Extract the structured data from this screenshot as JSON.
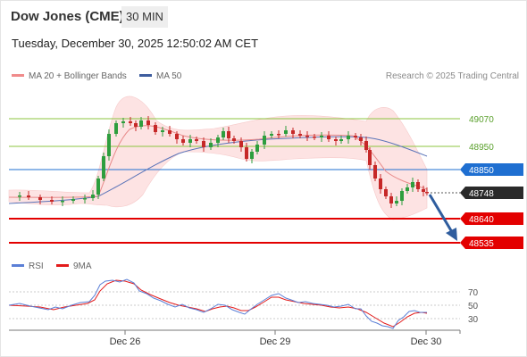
{
  "header": {
    "instrument": "Dow Jones (CME)",
    "timeframe": "30 MIN",
    "datetime": "Tuesday, December 30, 2025 12:50:02 AM CET"
  },
  "legend": {
    "ma20": "MA 20 + Bollinger Bands",
    "ma50": "MA 50",
    "credit": "Research © 2025 Trading Central",
    "rsi": "RSI",
    "ma9": "9MA"
  },
  "levels": [
    {
      "value": "49070",
      "kind": "resistance"
    },
    {
      "value": "48950",
      "kind": "resistance"
    },
    {
      "value": "48850",
      "kind": "pivot"
    },
    {
      "value": "48748",
      "kind": "last"
    },
    {
      "value": "48640",
      "kind": "support"
    },
    {
      "value": "48535",
      "kind": "support"
    }
  ],
  "rsi_scale": [
    "70",
    "50",
    "30"
  ],
  "x_labels": [
    "Dec 26",
    "Dec 29",
    "Dec 30"
  ],
  "colors": {
    "up": "#2e9e3e",
    "down": "#c62828",
    "ma20": "#e88a8a",
    "ma50": "#5b74b8",
    "band": "#fde3e3",
    "resistance": "#8cc63f",
    "pivot": "#1f6fd1",
    "support": "#e30000",
    "last": "#2a2a2a",
    "arrow": "#2f5d9e",
    "rsi": "#5b7fd6",
    "rsi_ma": "#e31b1b"
  }
}
